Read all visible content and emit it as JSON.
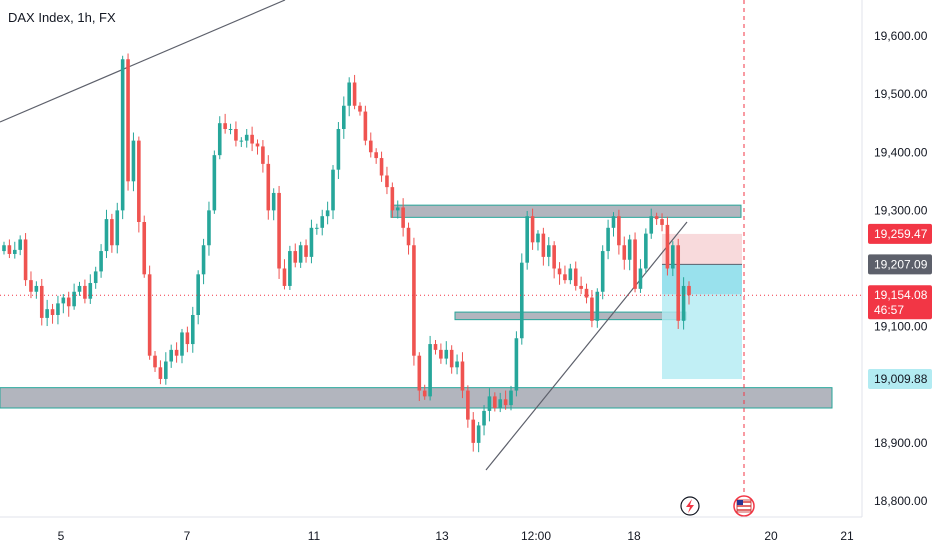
{
  "chart_title": "DAX Index, 1h, FX",
  "colors": {
    "up": "#26a69a",
    "down": "#ef5350",
    "zone_fill": "#b2b5be",
    "zone_border": "#26a69a",
    "stop_zone": "#f7d4d6",
    "target_zone": "#b2ebf2",
    "target_zone_top": "#7fd9e8",
    "accent_red": "#f23645",
    "tag_gray": "#5d606b",
    "tag_cyan": "#b2ebf2"
  },
  "chart_data": {
    "type": "candlestick",
    "title": "DAX Index, 1h, FX",
    "y_axis": {
      "range": [
        18750,
        19690
      ],
      "ticks": [
        "19,600.00",
        "19,500.00",
        "19,400.00",
        "19,300.00",
        "19,100.00",
        "18,900.00",
        "18,800.00"
      ],
      "tick_values": [
        19600,
        19500,
        19400,
        19300,
        19100,
        18900,
        18800
      ]
    },
    "x_axis": {
      "ticks": [
        "5",
        "7",
        "11",
        "13",
        "12:00",
        "18",
        "20",
        "21"
      ]
    },
    "price_tags": [
      {
        "label": "19,259.47",
        "value": 19259.47,
        "style": "red"
      },
      {
        "label": "19,207.09",
        "value": 19207.09,
        "style": "gray"
      },
      {
        "label": "19,154.08",
        "sublabel": "46:57",
        "value": 19154.08,
        "style": "current"
      },
      {
        "label": "19,009.88",
        "value": 19009.88,
        "style": "cyan"
      }
    ],
    "current_price": 19154.08,
    "zones": [
      {
        "name": "upper-resistance",
        "from": 19288,
        "to": 19309
      },
      {
        "name": "middle-support",
        "from": 19112,
        "to": 19125
      },
      {
        "name": "lower-support",
        "from": 18960,
        "to": 18995
      }
    ],
    "position": {
      "entry": 19207.09,
      "stop": 19259.47,
      "target": 19009.88
    },
    "closes": [
      19240,
      19225,
      19232,
      19250,
      19180,
      19160,
      19170,
      19115,
      19130,
      19120,
      19140,
      19150,
      19135,
      19160,
      19170,
      19148,
      19175,
      19195,
      19230,
      19285,
      19240,
      19300,
      19560,
      19350,
      19420,
      19280,
      19190,
      19050,
      19030,
      19010,
      19040,
      19060,
      19050,
      19090,
      19070,
      19120,
      19190,
      19240,
      19300,
      19395,
      19450,
      19440,
      19440,
      19420,
      19420,
      19430,
      19415,
      19410,
      19380,
      19300,
      19330,
      19200,
      19170,
      19230,
      19210,
      19240,
      19220,
      19270,
      19270,
      19290,
      19300,
      19370,
      19440,
      19480,
      19520,
      19480,
      19470,
      19420,
      19400,
      19390,
      19360,
      19340,
      19300,
      19305,
      19270,
      19240,
      19050,
      18990,
      18980,
      19070,
      19060,
      19045,
      19060,
      19030,
      19040,
      18990,
      18940,
      18900,
      18930,
      18955,
      18980,
      18960,
      18975,
      18965,
      18990,
      19080,
      19210,
      19290,
      19245,
      19260,
      19220,
      19240,
      19200,
      19190,
      19180,
      19200,
      19170,
      19165,
      19150,
      19110,
      19160,
      19230,
      19270,
      19290,
      19240,
      19215,
      19250,
      19165,
      19200,
      19260,
      19290,
      19285,
      19275,
      19200,
      19240,
      19110,
      19170,
      19154
    ]
  }
}
